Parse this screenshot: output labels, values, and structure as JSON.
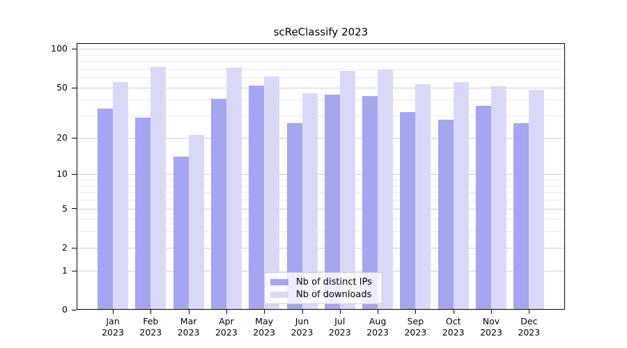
{
  "title": "scReClassify 2023",
  "chart_data": {
    "type": "bar",
    "title": "scReClassify 2023",
    "categories": [
      "Jan",
      "Feb",
      "Mar",
      "Apr",
      "May",
      "Jun",
      "Jul",
      "Aug",
      "Sep",
      "Oct",
      "Nov",
      "Dec"
    ],
    "category_year": "2023",
    "series": [
      {
        "name": "Nb of distinct IPs",
        "color": "#a5a5f2",
        "values": [
          34,
          29,
          14,
          41,
          52,
          26,
          44,
          43,
          32,
          28,
          36,
          26
        ]
      },
      {
        "name": "Nb of downloads",
        "color": "#d9d9f7",
        "values": [
          55,
          73,
          21,
          72,
          61,
          45,
          67,
          69,
          53,
          55,
          51,
          48
        ]
      }
    ],
    "yscale": "log1p",
    "ylim": [
      0,
      110
    ],
    "yticks": [
      0,
      1,
      2,
      5,
      10,
      20,
      50,
      100
    ],
    "yticks_minor": [
      3,
      4,
      6,
      7,
      8,
      9,
      30,
      40,
      60,
      70,
      80,
      90
    ],
    "xlabel": "",
    "ylabel": "",
    "grid": true,
    "legend_position": "lower center",
    "colors": {
      "bar_distinct_ips": "#a5a5f2",
      "bar_downloads": "#d9d9f7",
      "grid_major": "#cfcfcf",
      "grid_minor": "#eaeaea",
      "axis": "#000000",
      "background": "#ffffff"
    }
  }
}
